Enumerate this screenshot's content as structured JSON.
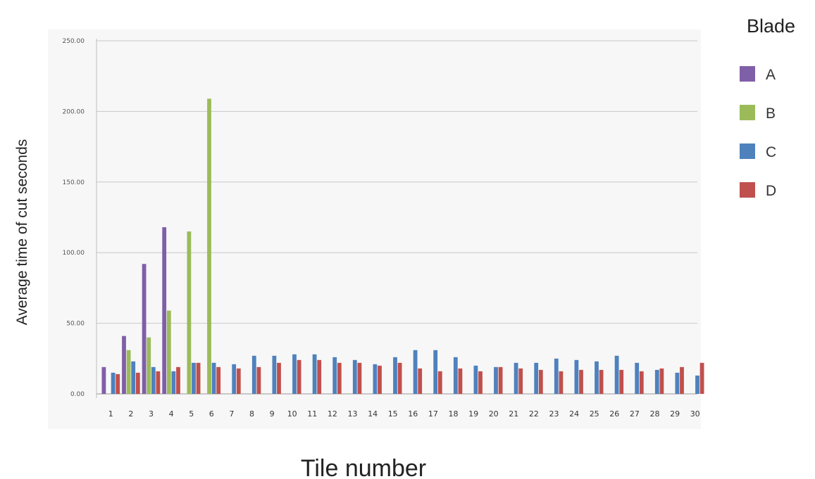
{
  "chart_data": {
    "type": "bar",
    "title": "",
    "xlabel": "Tile number",
    "ylabel": "Average time of cut seconds",
    "ylim": [
      0,
      250
    ],
    "yticks": [
      "0.00",
      "50.00",
      "100.00",
      "150.00",
      "200.00",
      "250.00"
    ],
    "grid": true,
    "legend_title": "Blade",
    "legend_position": "right",
    "categories": [
      "1",
      "2",
      "3",
      "4",
      "5",
      "6",
      "7",
      "8",
      "9",
      "10",
      "11",
      "12",
      "13",
      "14",
      "15",
      "16",
      "17",
      "18",
      "19",
      "20",
      "21",
      "22",
      "23",
      "24",
      "25",
      "26",
      "27",
      "28",
      "29",
      "30"
    ],
    "series": [
      {
        "name": "A",
        "color": "#7F5FA8",
        "values": [
          19,
          41,
          92,
          118,
          null,
          null,
          null,
          null,
          null,
          null,
          null,
          null,
          null,
          null,
          null,
          null,
          null,
          null,
          null,
          null,
          null,
          null,
          null,
          null,
          null,
          null,
          null,
          null,
          null,
          null
        ]
      },
      {
        "name": "B",
        "color": "#9BBB59",
        "values": [
          null,
          31,
          40,
          59,
          115,
          209,
          null,
          null,
          null,
          null,
          null,
          null,
          null,
          null,
          null,
          null,
          null,
          null,
          null,
          null,
          null,
          null,
          null,
          null,
          null,
          null,
          null,
          null,
          null,
          null
        ]
      },
      {
        "name": "C",
        "color": "#4F81BD",
        "values": [
          15,
          23,
          19,
          16,
          22,
          22,
          21,
          27,
          27,
          28,
          28,
          26,
          24,
          21,
          26,
          31,
          31,
          26,
          20,
          19,
          22,
          22,
          25,
          24,
          23,
          27,
          22,
          17,
          15,
          13
        ]
      },
      {
        "name": "D",
        "color": "#C0504D",
        "values": [
          14,
          15,
          16,
          19,
          22,
          19,
          18,
          19,
          22,
          24,
          24,
          22,
          22,
          20,
          22,
          18,
          16,
          18,
          16,
          19,
          18,
          17,
          16,
          17,
          17,
          17,
          16,
          18,
          19,
          22
        ]
      }
    ]
  }
}
